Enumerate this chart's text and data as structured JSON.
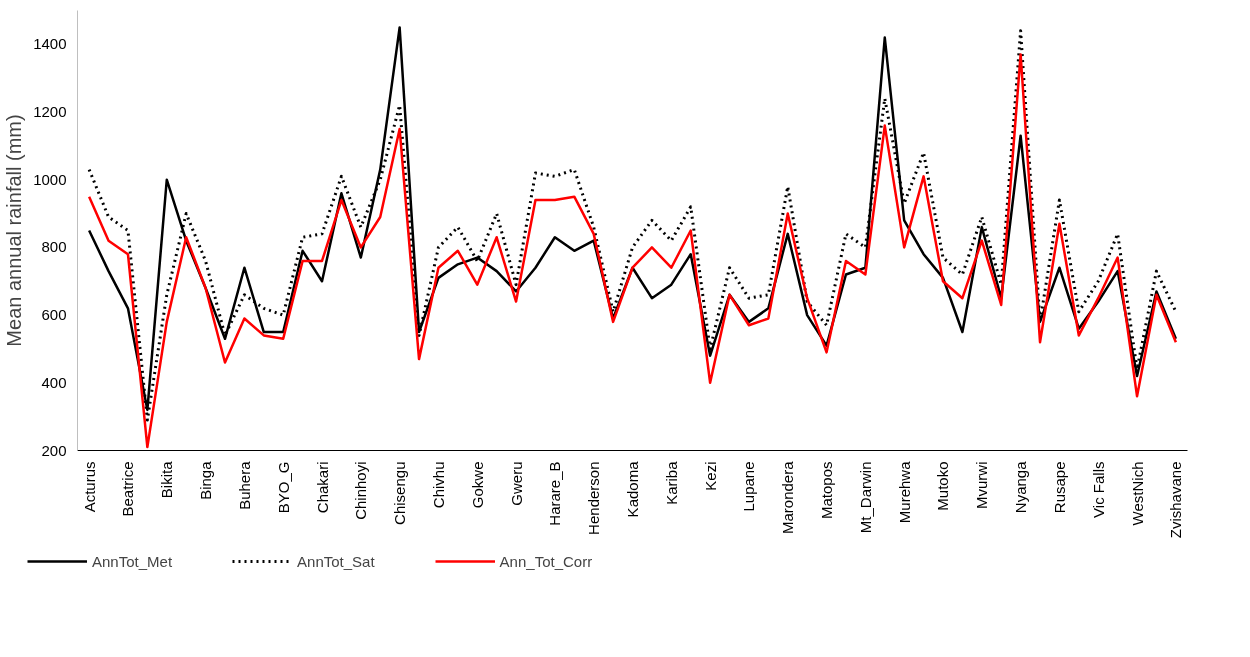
{
  "chart_data": {
    "type": "line",
    "ylabel": "Mean annual rainfall (mm)",
    "categories": [
      "Acturus",
      null,
      "Beatrice",
      null,
      "Bikita",
      null,
      "Binga",
      null,
      "Buhera",
      null,
      "BYO_G",
      null,
      "Chakari",
      null,
      "Chinhoyi",
      null,
      "Chisengu",
      null,
      "Chivhu",
      null,
      "Gokwe",
      null,
      "Gweru",
      null,
      "Harare_B",
      null,
      "Henderson",
      null,
      "Kadoma",
      null,
      "Kariba",
      null,
      "Kezi",
      null,
      "Lupane",
      null,
      "Marondera",
      null,
      "Matopos",
      null,
      "Mt_Darwin",
      null,
      "Murehwa",
      null,
      "Mutoko",
      null,
      "Mvurwi",
      null,
      "Nyanga",
      null,
      "Rusape",
      null,
      "Vic Falls",
      null,
      "WestNich",
      null,
      "Zvishavane"
    ],
    "series": [
      {
        "name": "AnnTot_Met",
        "color": "#000000",
        "line_style": "solid",
        "values": [
          850,
          730,
          620,
          320,
          1000,
          820,
          680,
          530,
          740,
          550,
          550,
          790,
          700,
          960,
          770,
          1030,
          1450,
          550,
          710,
          750,
          770,
          730,
          670,
          740,
          830,
          790,
          820,
          590,
          740,
          650,
          690,
          780,
          480,
          660,
          580,
          620,
          840,
          600,
          510,
          720,
          740,
          1420,
          880,
          780,
          710,
          550,
          860,
          650,
          1130,
          580,
          740,
          560,
          640,
          730,
          420,
          670,
          530
        ]
      },
      {
        "name": "AnnTot_Sat",
        "color": "#000000",
        "line_style": "dotted",
        "values": [
          1030,
          890,
          850,
          290,
          660,
          900,
          760,
          540,
          660,
          620,
          600,
          830,
          840,
          1010,
          860,
          1000,
          1220,
          540,
          800,
          860,
          760,
          900,
          690,
          1020,
          1010,
          1030,
          860,
          610,
          800,
          880,
          820,
          920,
          500,
          740,
          650,
          660,
          980,
          640,
          570,
          840,
          800,
          1240,
          930,
          1080,
          770,
          720,
          890,
          690,
          1440,
          580,
          940,
          610,
          700,
          840,
          440,
          730,
          610
        ]
      },
      {
        "name": "Ann_Tot_Corr",
        "color": "#ff0000",
        "line_style": "solid",
        "values": [
          950,
          820,
          780,
          210,
          580,
          830,
          680,
          460,
          590,
          540,
          530,
          760,
          760,
          940,
          800,
          890,
          1150,
          470,
          740,
          790,
          690,
          830,
          640,
          940,
          940,
          950,
          840,
          580,
          740,
          800,
          740,
          850,
          400,
          660,
          570,
          590,
          900,
          650,
          490,
          760,
          720,
          1160,
          800,
          1010,
          700,
          650,
          820,
          630,
          1370,
          520,
          870,
          540,
          650,
          770,
          360,
          660,
          520
        ]
      }
    ],
    "ylim": [
      200,
      1500
    ],
    "yticks": [
      200,
      400,
      600,
      800,
      1000,
      1200,
      1400
    ],
    "legend": "bottom"
  }
}
